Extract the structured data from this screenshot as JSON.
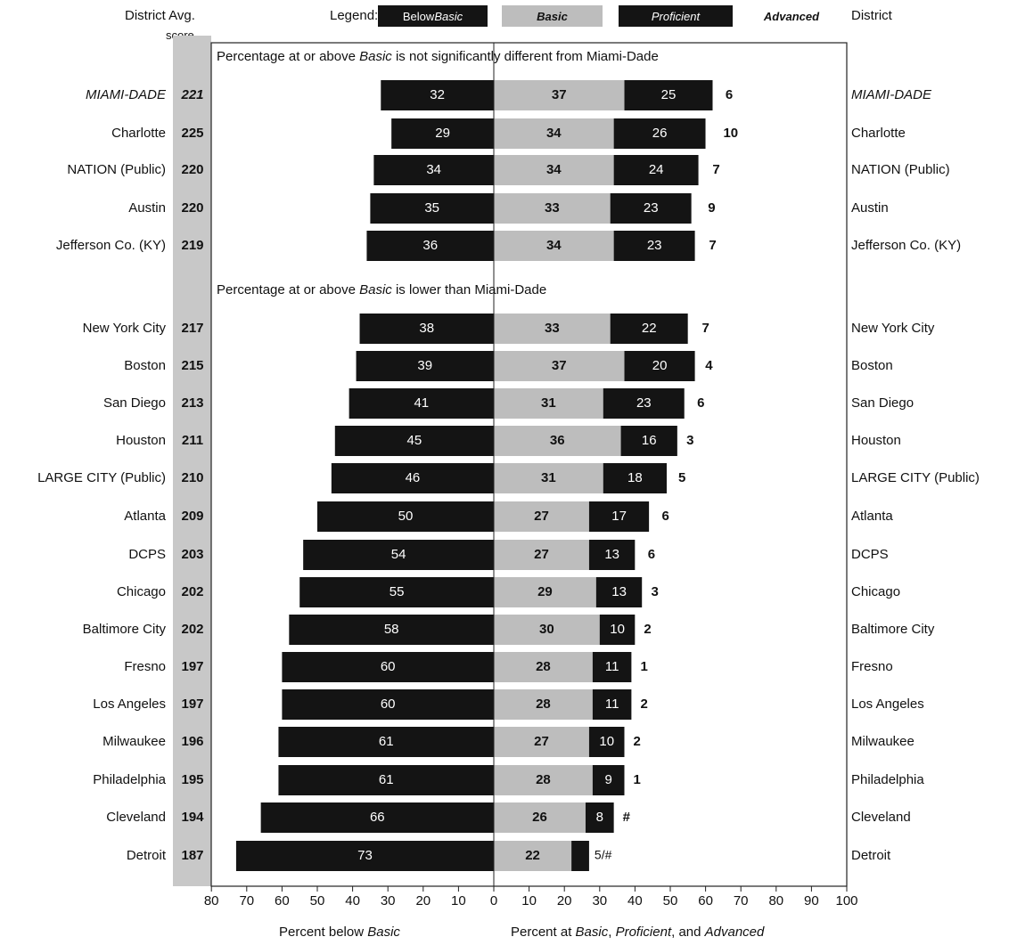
{
  "header": {
    "district_avg": "District Avg.",
    "score": "score",
    "legend_label": "Legend:",
    "district_right": "District"
  },
  "legend": {
    "below_basic_prefix": "Below ",
    "below_basic_italic": "Basic",
    "basic": "Basic",
    "proficient": "Proficient",
    "advanced": "Advanced"
  },
  "colors": {
    "below_basic": "#141414",
    "basic": "#bdbdbd",
    "proficient": "#141414",
    "advanced": "#ffffff",
    "score_band": "#c8c8c8"
  },
  "chart_data": {
    "type": "bar",
    "orientation": "horizontal-diverging",
    "groups": [
      {
        "title_parts": [
          "Percentage at or above ",
          "Basic",
          " is not significantly different from Miami-Dade"
        ],
        "rows": [
          {
            "district": "MIAMI-DADE",
            "italic": true,
            "score": "221",
            "below_basic": 32,
            "basic": 37,
            "proficient": 25,
            "advanced": "6"
          },
          {
            "district": "Charlotte",
            "italic": false,
            "score": "225",
            "below_basic": 29,
            "basic": 34,
            "proficient": 26,
            "advanced": "10"
          },
          {
            "district": "NATION (Public)",
            "italic": false,
            "score": "220",
            "below_basic": 34,
            "basic": 34,
            "proficient": 24,
            "advanced": "7"
          },
          {
            "district": "Austin",
            "italic": false,
            "score": "220",
            "below_basic": 35,
            "basic": 33,
            "proficient": 23,
            "advanced": "9"
          },
          {
            "district": "Jefferson Co. (KY)",
            "italic": false,
            "score": "219",
            "below_basic": 36,
            "basic": 34,
            "proficient": 23,
            "advanced": "7"
          }
        ]
      },
      {
        "title_parts": [
          "Percentage at or above ",
          "Basic",
          " is lower than Miami-Dade"
        ],
        "rows": [
          {
            "district": "New York City",
            "italic": false,
            "score": "217",
            "below_basic": 38,
            "basic": 33,
            "proficient": 22,
            "advanced": "7"
          },
          {
            "district": "Boston",
            "italic": false,
            "score": "215",
            "below_basic": 39,
            "basic": 37,
            "proficient": 20,
            "advanced": "4"
          },
          {
            "district": "San Diego",
            "italic": false,
            "score": "213",
            "below_basic": 41,
            "basic": 31,
            "proficient": 23,
            "advanced": "6"
          },
          {
            "district": "Houston",
            "italic": false,
            "score": "211",
            "below_basic": 45,
            "basic": 36,
            "proficient": 16,
            "advanced": "3"
          },
          {
            "district": "LARGE CITY (Public)",
            "italic": false,
            "score": "210",
            "below_basic": 46,
            "basic": 31,
            "proficient": 18,
            "advanced": "5"
          },
          {
            "district": "Atlanta",
            "italic": false,
            "score": "209",
            "below_basic": 50,
            "basic": 27,
            "proficient": 17,
            "advanced": "6"
          },
          {
            "district": "DCPS",
            "italic": false,
            "score": "203",
            "below_basic": 54,
            "basic": 27,
            "proficient": 13,
            "advanced": "6"
          },
          {
            "district": "Chicago",
            "italic": false,
            "score": "202",
            "below_basic": 55,
            "basic": 29,
            "proficient": 13,
            "advanced": "3"
          },
          {
            "district": "Baltimore City",
            "italic": false,
            "score": "202",
            "below_basic": 58,
            "basic": 30,
            "proficient": 10,
            "advanced": "2"
          },
          {
            "district": "Fresno",
            "italic": false,
            "score": "197",
            "below_basic": 60,
            "basic": 28,
            "proficient": 11,
            "advanced": "1"
          },
          {
            "district": "Los Angeles",
            "italic": false,
            "score": "197",
            "below_basic": 60,
            "basic": 28,
            "proficient": 11,
            "advanced": "2"
          },
          {
            "district": "Milwaukee",
            "italic": false,
            "score": "196",
            "below_basic": 61,
            "basic": 27,
            "proficient": 10,
            "advanced": "2"
          },
          {
            "district": "Philadelphia",
            "italic": false,
            "score": "195",
            "below_basic": 61,
            "basic": 28,
            "proficient": 9,
            "advanced": "1"
          },
          {
            "district": "Cleveland",
            "italic": false,
            "score": "194",
            "below_basic": 66,
            "basic": 26,
            "proficient": 8,
            "advanced": "#"
          },
          {
            "district": "Detroit",
            "italic": false,
            "score": "187",
            "below_basic": 73,
            "basic": 22,
            "proficient": 5,
            "advanced": "#",
            "combined_label": "5/#"
          }
        ]
      }
    ],
    "x_left_ticks": [
      "80",
      "70",
      "60",
      "50",
      "40",
      "30",
      "20",
      "10",
      "0"
    ],
    "x_right_ticks": [
      "0",
      "10",
      "20",
      "30",
      "40",
      "50",
      "60",
      "70",
      "80",
      "90",
      "100"
    ],
    "xlim_left": [
      80,
      0
    ],
    "xlim_right": [
      0,
      100
    ],
    "xlabel_left_parts": [
      "Percent below ",
      "Basic"
    ],
    "xlabel_right_parts": [
      "Percent at ",
      "Basic",
      ", ",
      "Proficient",
      ", and ",
      "Advanced"
    ],
    "legend_position": "top"
  }
}
